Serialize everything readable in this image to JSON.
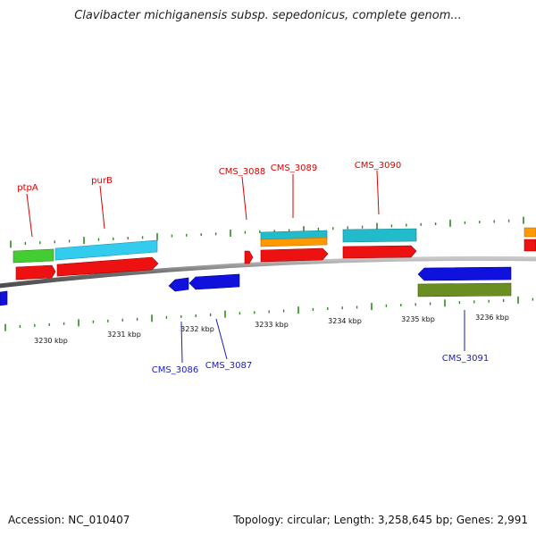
{
  "title": "Clavibacter michiganensis subsp. sepedonicus, complete genom...",
  "footer": {
    "accession": "Accession: NC_010407",
    "summary": "Topology: circular; Length: 3,258,645 bp; Genes: 2,991"
  },
  "colors": {
    "backbone": "#808080",
    "tick": "#2e8b22",
    "forward_label": "#dd0000",
    "reverse_label": "#1a1ab8",
    "green_feature": "#44cc33",
    "cyan_feature": "#33ccee",
    "red_feature": "#ee1111",
    "orange_feature": "#ff9900",
    "teal_feature": "#22bbcc",
    "blue_feature": "#1111dd",
    "olive_feature": "#6b8e23"
  },
  "scale_labels": [
    "3230 kbp",
    "3231 kbp",
    "3232 kbp",
    "3233 kbp",
    "3234 kbp",
    "3235 kbp",
    "3236 kbp"
  ],
  "forward_gene_labels": [
    "ptpA",
    "purB",
    "CMS_3088",
    "CMS_3089",
    "CMS_3090"
  ],
  "reverse_gene_labels": [
    "CMS_3086",
    "CMS_3087",
    "CMS_3091"
  ]
}
